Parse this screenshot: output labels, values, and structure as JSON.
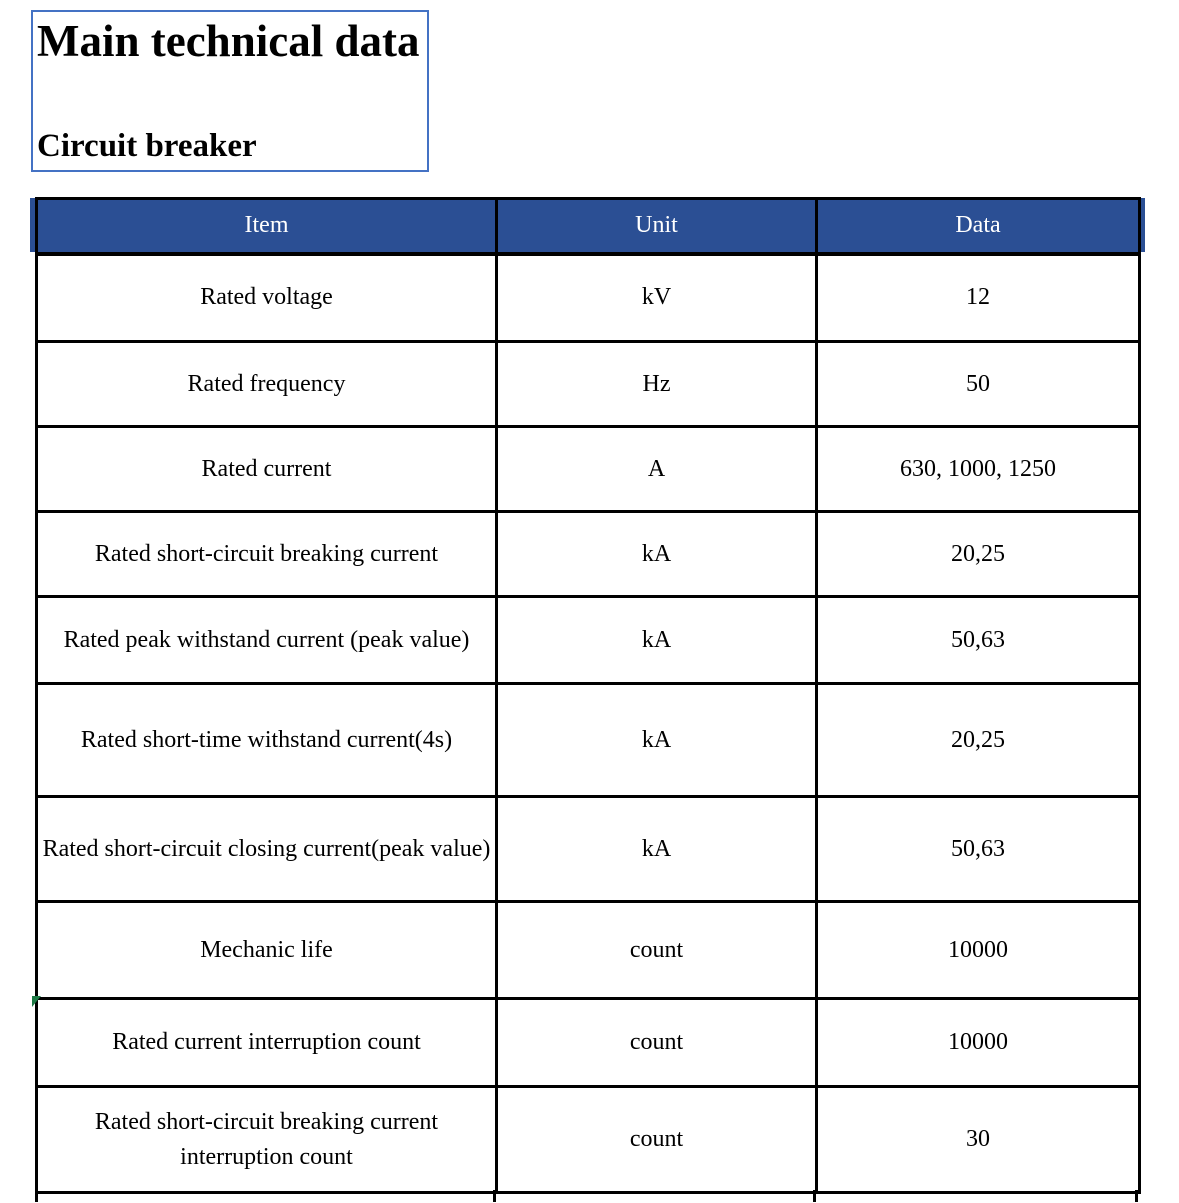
{
  "title_box": {
    "title": "Main technical data",
    "subtitle": "Circuit breaker",
    "border_color": "#4472C4"
  },
  "table": {
    "header_bg": "#2B4F94",
    "header_text_color": "#ffffff",
    "border_color": "#000000",
    "columns": [
      "Item",
      "Unit",
      "Data"
    ],
    "rows": [
      {
        "item": "Rated voltage",
        "unit": "kV",
        "data": "12"
      },
      {
        "item": "Rated frequency",
        "unit": "Hz",
        "data": "50"
      },
      {
        "item": "Rated current",
        "unit": "A",
        "data": "630, 1000, 1250"
      },
      {
        "item": "Rated short-circuit breaking current",
        "unit": "kA",
        "data": "20,25"
      },
      {
        "item": "Rated peak withstand current (peak value)",
        "unit": "kA",
        "data": "50,63"
      },
      {
        "item": "Rated short-time withstand current(4s)",
        "unit": "kA",
        "data": "20,25"
      },
      {
        "item": "Rated short-circuit closing current(peak value)",
        "unit": "kA",
        "data": "50,63"
      },
      {
        "item": "Mechanic life",
        "unit": "count",
        "data": "10000"
      },
      {
        "item": "Rated current interruption count",
        "unit": "count",
        "data": "10000"
      },
      {
        "item": "Rated short-circuit breaking current interruption count",
        "unit": "count",
        "data": "30"
      }
    ]
  },
  "annotation": {
    "comment_marker_color": "#1E7B46"
  }
}
